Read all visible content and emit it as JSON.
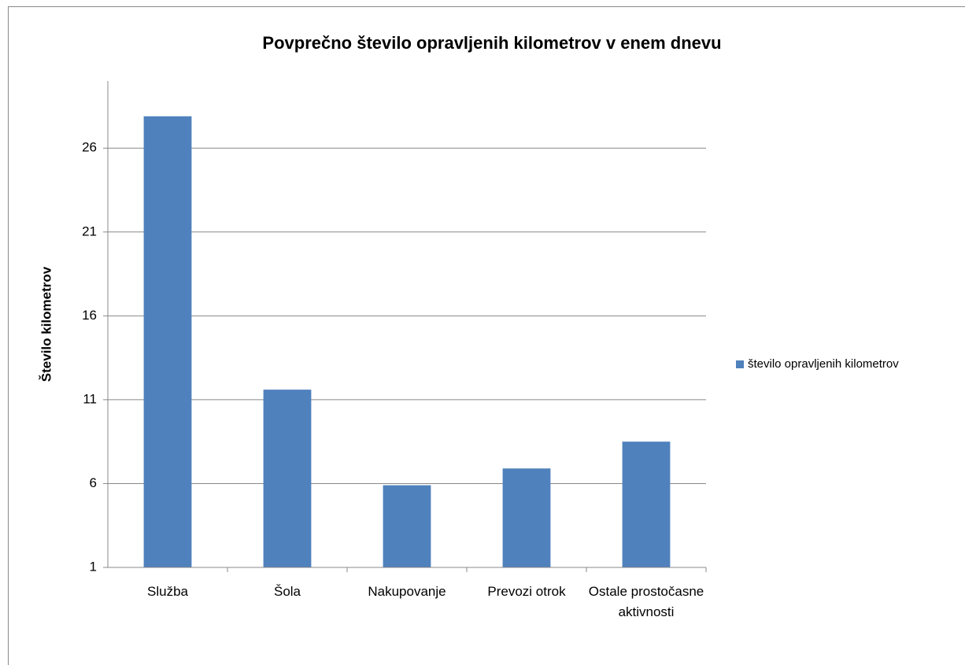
{
  "chart_data": {
    "type": "bar",
    "title": "Povprečno število opravljenih kilometrov v enem dnevu",
    "y_label": "Število kilometrov",
    "categories": [
      "Služba",
      "Šola",
      "Nakupovanje",
      "Prevozi otrok",
      "Ostale prostočasne aktivnosti"
    ],
    "series": [
      {
        "name": "število opravljenih kilometrov",
        "color": "#4f81bd",
        "values": [
          27.9,
          11.6,
          5.9,
          6.9,
          8.5
        ]
      }
    ],
    "ylim": [
      1,
      30
    ],
    "yticks": [
      1,
      6,
      11,
      16,
      21,
      26
    ],
    "grid": true,
    "legend": "right"
  }
}
